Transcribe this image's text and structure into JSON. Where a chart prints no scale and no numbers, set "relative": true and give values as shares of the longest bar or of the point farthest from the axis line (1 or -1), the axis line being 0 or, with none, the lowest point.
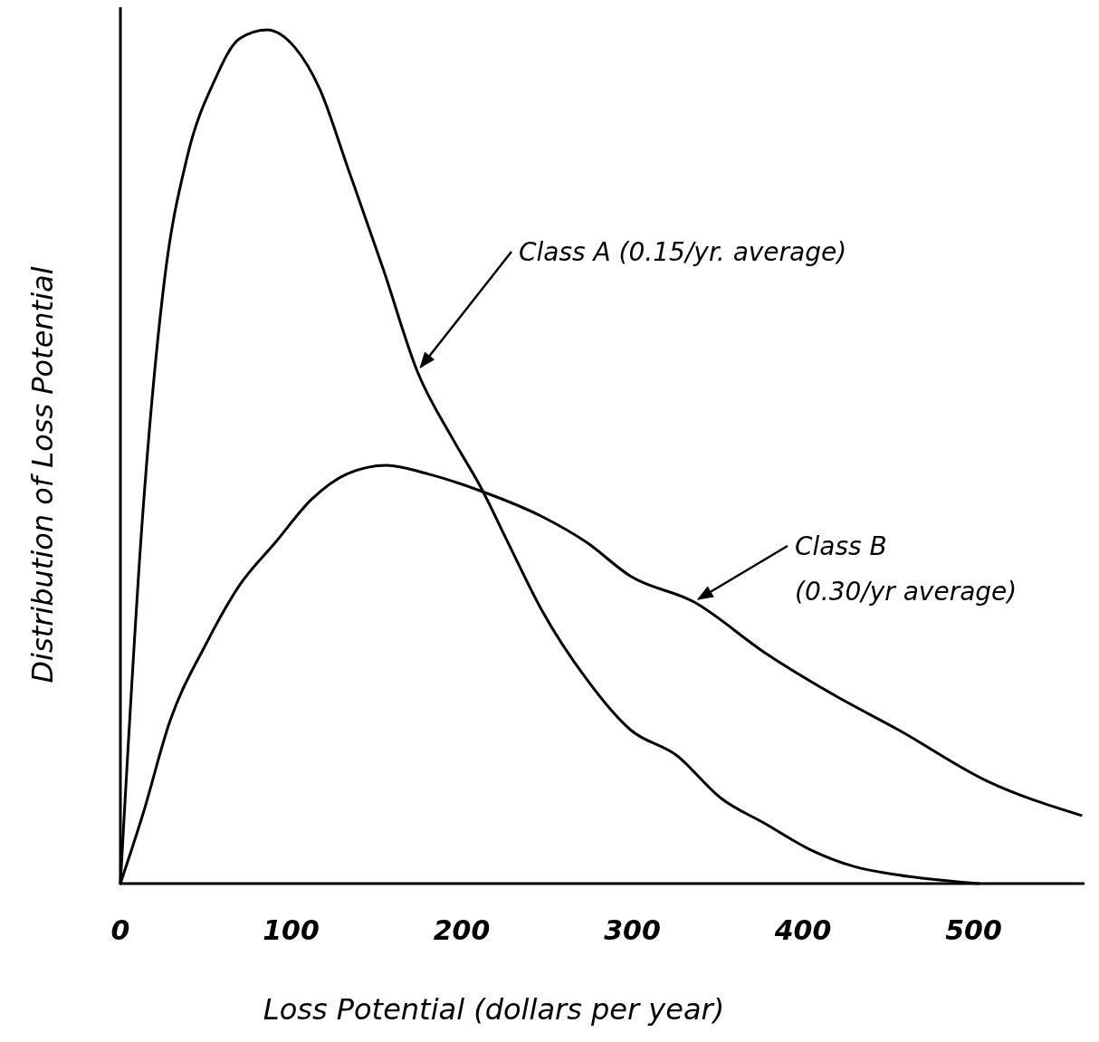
{
  "chart_data": {
    "type": "line",
    "relative": true,
    "xlabel": "Loss Potential (dollars per year)",
    "ylabel": "Distribution of Loss Potential",
    "xlim": [
      0,
      565
    ],
    "xticks": [
      0,
      100,
      200,
      300,
      400,
      500
    ],
    "grid": false,
    "marker": "none",
    "line_style": "solid",
    "series": [
      {
        "color": "#000000",
        "x": [
          0,
          13,
          26,
          39,
          55,
          70,
          86,
          102,
          117,
          133,
          154,
          174,
          195,
          211,
          227,
          247,
          273,
          299,
          326,
          352,
          378,
          404,
          430,
          456,
          503
        ],
        "values": [
          0,
          0.43,
          0.71,
          0.85,
          0.94,
          0.99,
          1,
          0.98,
          0.93,
          0.84,
          0.72,
          0.6,
          0.52,
          0.465,
          0.4,
          0.32,
          0.24,
          0.18,
          0.15,
          0.1,
          0.07,
          0.04,
          0.02,
          0.01,
          0
        ]
      },
      {
        "color": "#000000",
        "x": [
          0,
          13,
          29,
          50,
          70,
          91,
          112,
          133,
          156,
          180,
          211,
          247,
          273,
          299,
          336,
          378,
          419,
          456,
          508,
          563
        ],
        "values": [
          0,
          0.08,
          0.19,
          0.28,
          0.35,
          0.4,
          0.45,
          0.48,
          0.49,
          0.48,
          0.46,
          0.43,
          0.4,
          0.36,
          0.33,
          0.27,
          0.22,
          0.18,
          0.12,
          0.08
        ]
      }
    ],
    "annotations": [
      "Class A  (0.15/yr. average)",
      "Class B",
      "(0.30/yr average)"
    ]
  }
}
